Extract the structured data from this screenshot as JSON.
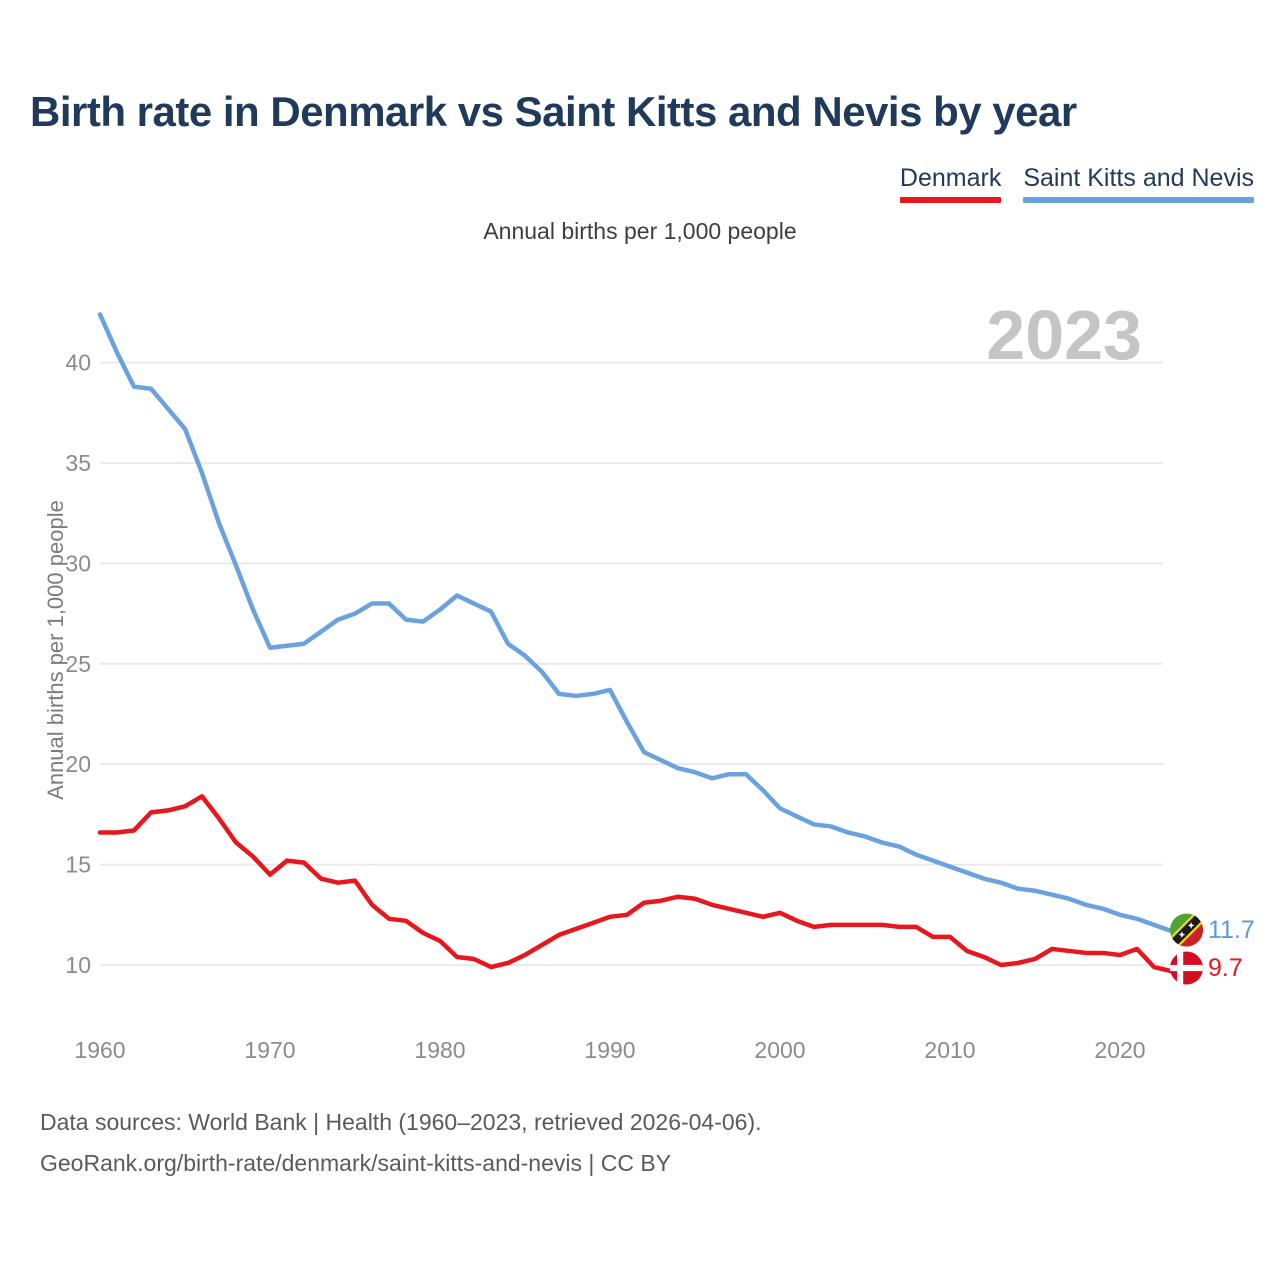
{
  "header": {
    "title": "Birth rate in Denmark vs Saint Kitts and Nevis by year"
  },
  "legend": [
    {
      "label": "Denmark",
      "color": "#e8161d"
    },
    {
      "label": "Saint Kitts and Nevis",
      "color": "#6aa2de"
    }
  ],
  "subtitle": "Annual births per 1,000 people",
  "watermark": "2023",
  "y_axis": {
    "label": "Annual births per 1,000 people"
  },
  "end_labels": [
    {
      "series": "Saint Kitts and Nevis",
      "value": "11.7",
      "color": "#5b9bd9",
      "flag": "saint-kitts-and-nevis-flag"
    },
    {
      "series": "Denmark",
      "value": "9.7",
      "color": "#e8161d",
      "flag": "denmark-flag"
    }
  ],
  "footer": {
    "line1": "Data sources: World Bank | Health (1960–2023, retrieved 2026-04-06).",
    "line2": "GeoRank.org/birth-rate/denmark/saint-kitts-and-nevis | CC BY"
  },
  "chart_data": {
    "type": "line",
    "title": "Birth rate in Denmark vs Saint Kitts and Nevis by year",
    "xlabel": "",
    "ylabel": "Annual births per 1,000 people",
    "grid": "horizontal",
    "legend_position": "top-right",
    "ylim": [
      8.5,
      43.5
    ],
    "yticks": [
      10,
      15,
      20,
      25,
      30,
      35,
      40
    ],
    "xticks": [
      1960,
      1970,
      1980,
      1990,
      2000,
      2010,
      2020
    ],
    "x": [
      1960,
      1961,
      1962,
      1963,
      1964,
      1965,
      1966,
      1967,
      1968,
      1969,
      1970,
      1971,
      1972,
      1973,
      1974,
      1975,
      1976,
      1977,
      1978,
      1979,
      1980,
      1981,
      1982,
      1983,
      1984,
      1985,
      1986,
      1987,
      1988,
      1989,
      1990,
      1991,
      1992,
      1993,
      1994,
      1995,
      1996,
      1997,
      1998,
      1999,
      2000,
      2001,
      2002,
      2003,
      2004,
      2005,
      2006,
      2007,
      2008,
      2009,
      2010,
      2011,
      2012,
      2013,
      2014,
      2015,
      2016,
      2017,
      2018,
      2019,
      2020,
      2021,
      2022,
      2023
    ],
    "series": [
      {
        "name": "Denmark",
        "color": "#e8161d",
        "values": [
          16.6,
          16.6,
          16.7,
          17.6,
          17.7,
          17.9,
          18.4,
          17.3,
          16.1,
          15.4,
          14.5,
          15.2,
          15.1,
          14.3,
          14.1,
          14.2,
          13.0,
          12.3,
          12.2,
          11.6,
          11.2,
          10.4,
          10.3,
          9.9,
          10.1,
          10.5,
          11.0,
          11.5,
          11.8,
          12.1,
          12.4,
          12.5,
          13.1,
          13.2,
          13.4,
          13.3,
          13.0,
          12.8,
          12.6,
          12.4,
          12.6,
          12.2,
          11.9,
          12.0,
          12.0,
          12.0,
          12.0,
          11.9,
          11.9,
          11.4,
          11.4,
          10.7,
          10.4,
          10.0,
          10.1,
          10.3,
          10.8,
          10.7,
          10.6,
          10.6,
          10.5,
          10.8,
          9.9,
          9.7
        ]
      },
      {
        "name": "Saint Kitts and Nevis",
        "color": "#6aa2de",
        "values": [
          42.4,
          40.5,
          38.8,
          38.7,
          37.7,
          36.7,
          34.5,
          32.0,
          29.9,
          27.7,
          25.8,
          25.9,
          26.0,
          26.6,
          27.2,
          27.5,
          28.0,
          28.0,
          27.2,
          27.1,
          27.7,
          28.4,
          28.0,
          27.6,
          26.0,
          25.4,
          24.6,
          23.5,
          23.4,
          23.5,
          23.7,
          22.1,
          20.6,
          20.2,
          19.8,
          19.6,
          19.3,
          19.5,
          19.5,
          18.7,
          17.8,
          17.4,
          17.0,
          16.9,
          16.6,
          16.4,
          16.1,
          15.9,
          15.5,
          15.2,
          14.9,
          14.6,
          14.3,
          14.1,
          13.8,
          13.7,
          13.5,
          13.3,
          13.0,
          12.8,
          12.5,
          12.3,
          12.0,
          11.7
        ]
      }
    ],
    "end_values": {
      "Denmark": 9.7,
      "Saint Kitts and Nevis": 11.7
    }
  }
}
